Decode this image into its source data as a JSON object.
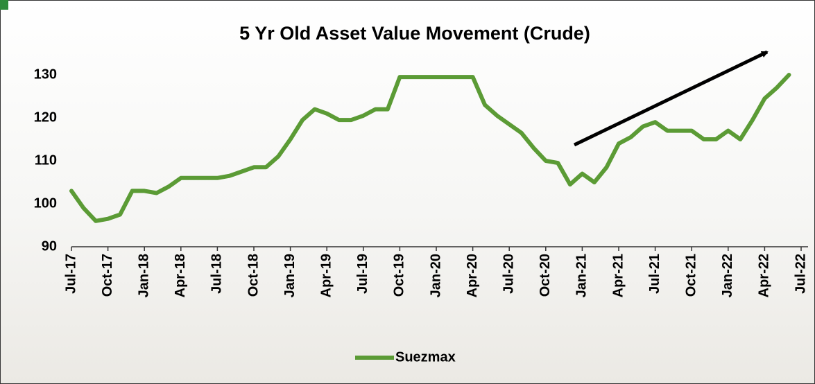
{
  "chart_data": {
    "type": "line",
    "title": "5 Yr Old Asset Value Movement (Crude)",
    "categories": [
      "Jul-17",
      null,
      null,
      "Oct-17",
      null,
      null,
      "Jan-18",
      null,
      null,
      "Apr-18",
      null,
      null,
      "Jul-18",
      null,
      null,
      "Oct-18",
      null,
      null,
      "Jan-19",
      null,
      null,
      "Apr-19",
      null,
      null,
      "Jul-19",
      null,
      null,
      "Oct-19",
      null,
      null,
      "Jan-20",
      null,
      null,
      "Apr-20",
      null,
      null,
      "Jul-20",
      null,
      null,
      "Oct-20",
      null,
      null,
      "Jan-21",
      null,
      null,
      "Apr-21",
      null,
      null,
      "Jul-21",
      null,
      null,
      "Oct-21",
      null,
      null,
      "Jan-22",
      null,
      null,
      "Apr-22",
      null,
      null,
      "Jul-22"
    ],
    "series": [
      {
        "name": "Suezmax",
        "color": "#5b9b35",
        "values": [
          103,
          99,
          96,
          96.5,
          97.5,
          103,
          103,
          102.5,
          104,
          106,
          106,
          106,
          106,
          106.5,
          107.5,
          108.5,
          108.5,
          111,
          115,
          119.5,
          122,
          121,
          119.5,
          119.5,
          120.5,
          122,
          122,
          129.5,
          129.5,
          129.5,
          129.5,
          129.5,
          129.5,
          129.5,
          123,
          120.5,
          118.5,
          116.5,
          113,
          110,
          109.5,
          104.5,
          107,
          105,
          108.5,
          114,
          115.5,
          118,
          119,
          117,
          117,
          117,
          115,
          115,
          117,
          115,
          119.5,
          124.5,
          127,
          130,
          null
        ]
      }
    ],
    "ylim": [
      90,
      130
    ],
    "yticks": [
      90,
      100,
      110,
      120,
      130
    ]
  }
}
